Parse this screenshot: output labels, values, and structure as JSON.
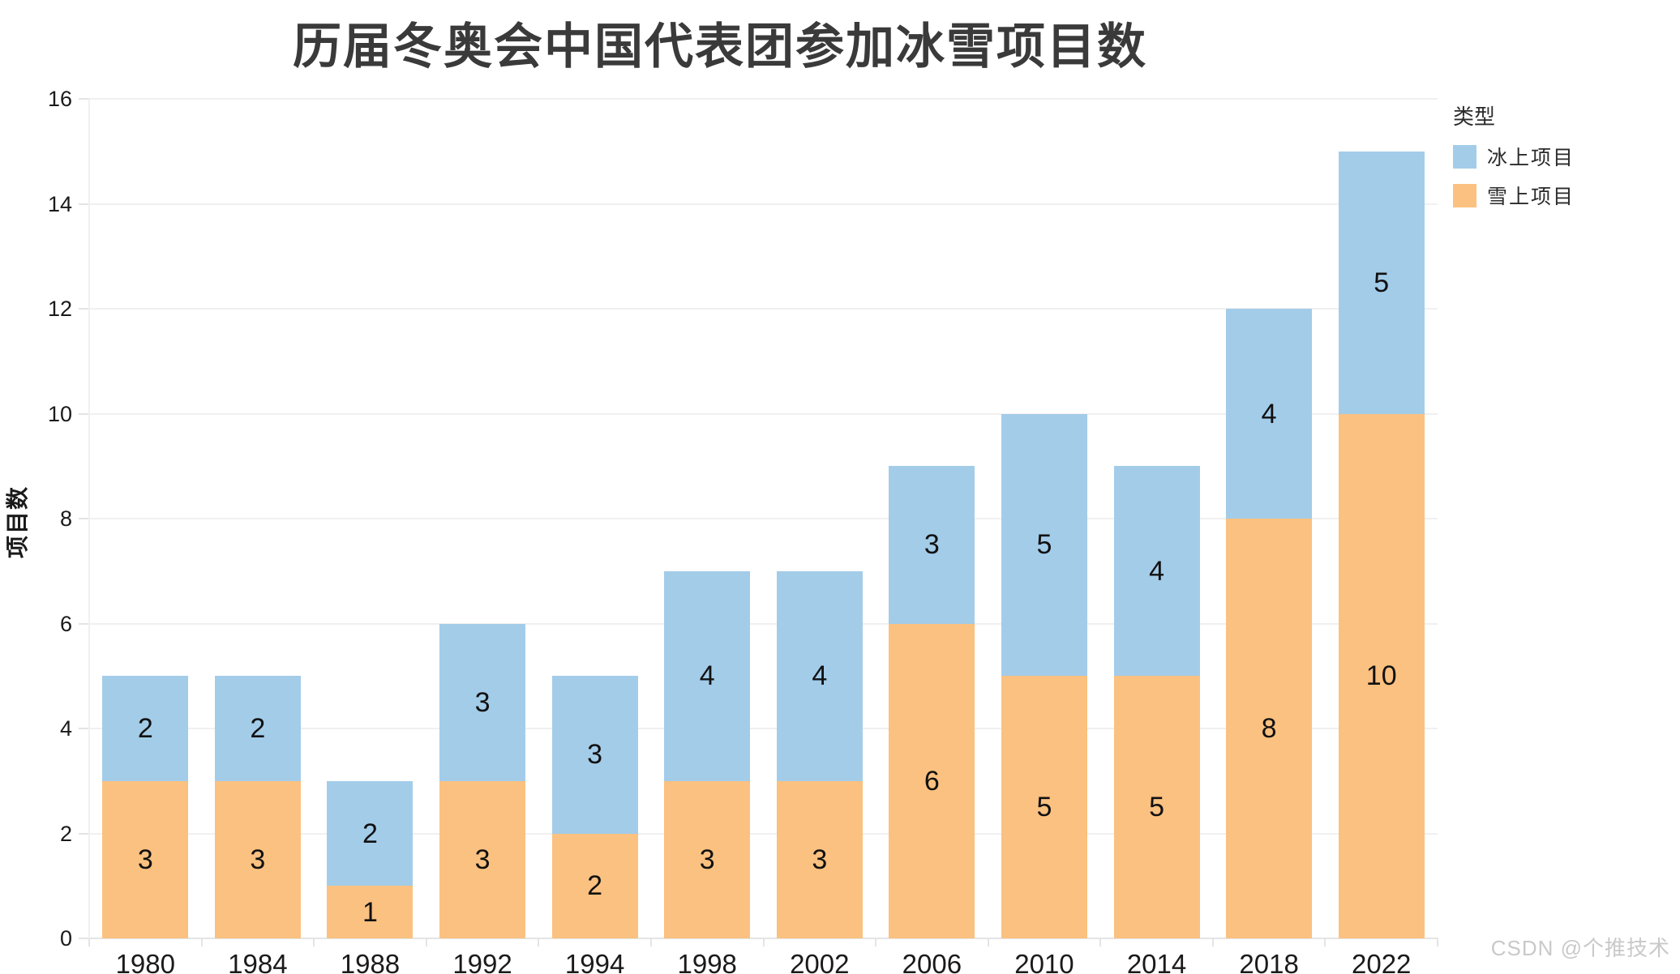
{
  "title": "历届冬奥会中国代表团参加冰雪项目数",
  "watermark": "CSDN @个推技术",
  "chart_data": {
    "type": "bar",
    "stacked": true,
    "title": "历届冬奥会中国代表团参加冰雪项目数",
    "xlabel": "",
    "ylabel": "项目数",
    "categories": [
      "1980",
      "1984",
      "1988",
      "1992",
      "1994",
      "1998",
      "2002",
      "2006",
      "2010",
      "2014",
      "2018",
      "2022"
    ],
    "series": [
      {
        "name": "雪上项目",
        "color": "#FBC180",
        "values": [
          3,
          3,
          1,
          3,
          2,
          3,
          3,
          6,
          5,
          5,
          8,
          10
        ]
      },
      {
        "name": "冰上项目",
        "color": "#A3CCE9",
        "values": [
          2,
          2,
          2,
          3,
          3,
          4,
          4,
          3,
          5,
          4,
          4,
          5
        ]
      }
    ],
    "totals": [
      5,
      5,
      3,
      6,
      5,
      7,
      7,
      9,
      10,
      9,
      12,
      15
    ],
    "ylim": [
      0,
      16
    ],
    "yticks": [
      0,
      2,
      4,
      6,
      8,
      10,
      12,
      14,
      16
    ],
    "grid": true,
    "legend": {
      "title": "类型",
      "position": "right-top",
      "items": [
        {
          "label": "冰上项目",
          "color": "#A3CCE9"
        },
        {
          "label": "雪上项目",
          "color": "#FBC180"
        }
      ]
    }
  }
}
